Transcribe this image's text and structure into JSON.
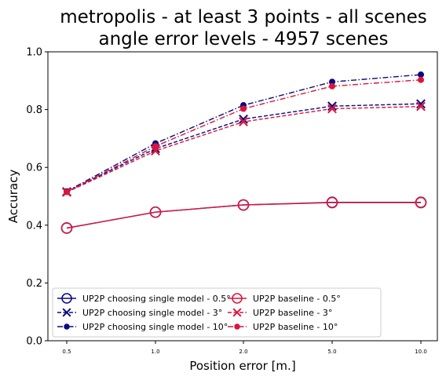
{
  "chart_data": {
    "type": "line",
    "title_line1": "metropolis - at least 3 points - all scenes",
    "title_line2": "angle error levels - 4957 scenes",
    "xlabel": "Position error [m.]",
    "ylabel": "Accuracy",
    "categories": [
      "0.5",
      "1.0",
      "2.0",
      "5.0",
      "10.0"
    ],
    "ylim": [
      0.0,
      1.0
    ],
    "yticks": [
      "0.0",
      "0.2",
      "0.4",
      "0.6",
      "0.8",
      "1.0"
    ],
    "grid": false,
    "legend_position": "lower-left",
    "legend_columns": 2,
    "colors": {
      "up2p": "#0a0a80",
      "baseline": "#dc143c"
    },
    "series": [
      {
        "name": "UP2P choosing single model - 0.5°",
        "color": "#0a0a80",
        "marker": "open-circle",
        "linestyle": "solid",
        "values": [
          0.39,
          0.445,
          0.47,
          0.479,
          0.479
        ]
      },
      {
        "name": "UP2P choosing single model - 3°",
        "color": "#0a0a80",
        "marker": "x",
        "linestyle": "dashed",
        "values": [
          0.516,
          0.665,
          0.767,
          0.812,
          0.82
        ]
      },
      {
        "name": "UP2P choosing single model - 10°",
        "color": "#0a0a80",
        "marker": "dot",
        "linestyle": "dashdot",
        "values": [
          0.517,
          0.683,
          0.815,
          0.896,
          0.921
        ]
      },
      {
        "name": "UP2P baseline - 0.5°",
        "color": "#dc143c",
        "marker": "open-circle",
        "linestyle": "solid",
        "values": [
          0.39,
          0.445,
          0.47,
          0.478,
          0.478
        ]
      },
      {
        "name": "UP2P baseline - 3°",
        "color": "#dc143c",
        "marker": "x",
        "linestyle": "dashed",
        "values": [
          0.514,
          0.657,
          0.758,
          0.803,
          0.811
        ]
      },
      {
        "name": "UP2P baseline - 10°",
        "color": "#dc143c",
        "marker": "dot",
        "linestyle": "dashdot",
        "values": [
          0.515,
          0.673,
          0.803,
          0.881,
          0.903
        ]
      }
    ]
  }
}
